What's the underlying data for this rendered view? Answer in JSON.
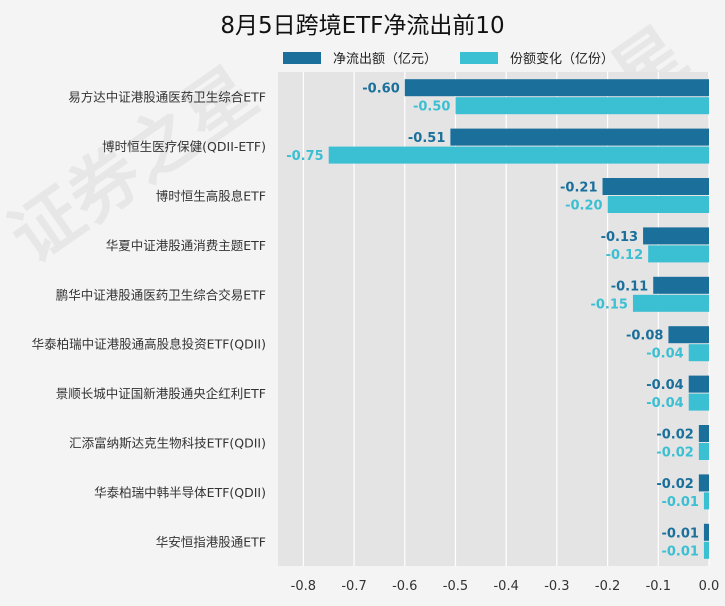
{
  "title": "8月5日跨境ETF净流出前10",
  "legend": [
    {
      "name": "净流出额（亿元）",
      "color": "#1a6f9b"
    },
    {
      "name": "份额变化（亿份）",
      "color": "#3bbfd3"
    }
  ],
  "chart_data": {
    "type": "bar",
    "orientation": "horizontal",
    "title": "8月5日跨境ETF净流出前10",
    "categories": [
      "易方达中证港股通医药卫生综合ETF",
      "博时恒生医疗保健(QDII-ETF)",
      "博时恒生高股息ETF",
      "华夏中证港股通消费主题ETF",
      "鹏华中证港股通医药卫生综合交易ETF",
      "华泰柏瑞中证港股通高股息投资ETF(QDII)",
      "景顺长城中证国新港股通央企红利ETF",
      "汇添富纳斯达克生物科技ETF(QDII)",
      "华泰柏瑞中韩半导体ETF(QDII)",
      "华安恒指港股通ETF"
    ],
    "series": [
      {
        "name": "净流出额（亿元）",
        "color": "#1a6f9b",
        "values": [
          -0.6,
          -0.51,
          -0.21,
          -0.13,
          -0.11,
          -0.08,
          -0.04,
          -0.02,
          -0.02,
          -0.01
        ]
      },
      {
        "name": "份额变化（亿份）",
        "color": "#3bbfd3",
        "values": [
          -0.5,
          -0.75,
          -0.2,
          -0.12,
          -0.15,
          -0.04,
          -0.04,
          -0.02,
          -0.01,
          -0.01
        ]
      }
    ],
    "xlim": [
      -0.85,
      0.0
    ],
    "xticks": [
      -0.8,
      -0.7,
      -0.6,
      -0.5,
      -0.4,
      -0.3,
      -0.2,
      -0.1,
      0.0
    ],
    "grid": true,
    "legend_position": "top"
  },
  "watermark": "证券之星"
}
